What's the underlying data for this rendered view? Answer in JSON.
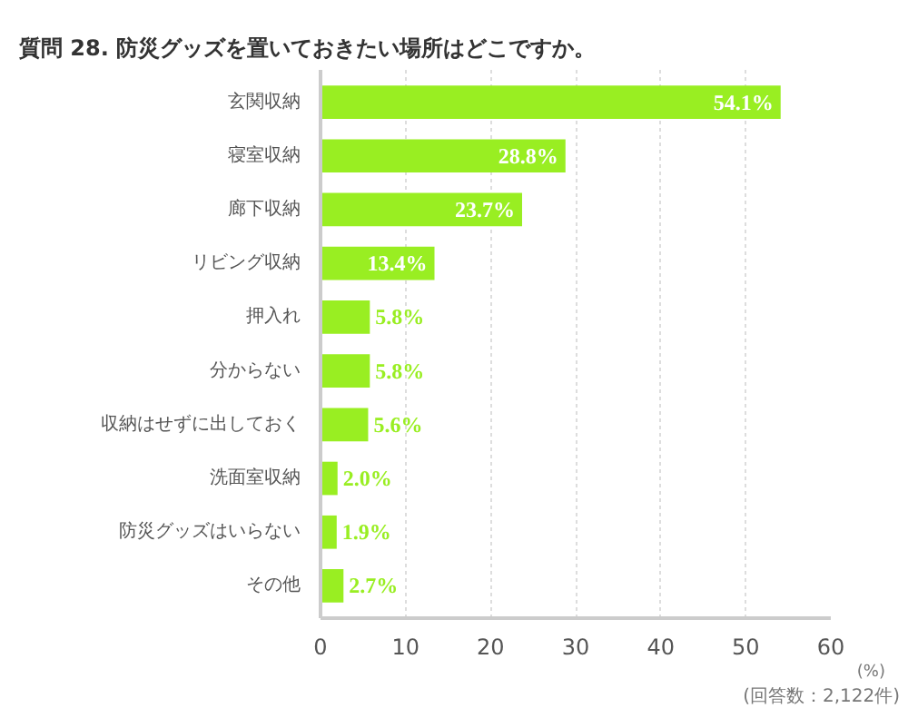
{
  "chart_data": {
    "type": "bar",
    "orientation": "horizontal",
    "title": "質問 28. 防災グッズを置いておきたい場所はどこですか。",
    "xlabel": "(%)",
    "categories": [
      "玄関収納",
      "寝室収納",
      "廊下収納",
      "リビング収納",
      "押入れ",
      "分からない",
      "収納はせずに出しておく",
      "洗面室収納",
      "防災グッズはいらない",
      "その他"
    ],
    "values": [
      54.1,
      28.8,
      23.7,
      13.4,
      5.8,
      5.8,
      5.6,
      2.0,
      1.9,
      2.7
    ],
    "value_labels": [
      "54.1%",
      "28.8%",
      "23.7%",
      "13.4%",
      "5.8%",
      "5.8%",
      "5.6%",
      "2.0%",
      "1.9%",
      "2.7%"
    ],
    "color": "#99ee22",
    "xlim": [
      0,
      60
    ],
    "xticks": [
      0,
      10,
      20,
      30,
      40,
      50,
      60
    ],
    "grid": "x",
    "annotations": [
      "(回答数：2,122件)"
    ]
  }
}
